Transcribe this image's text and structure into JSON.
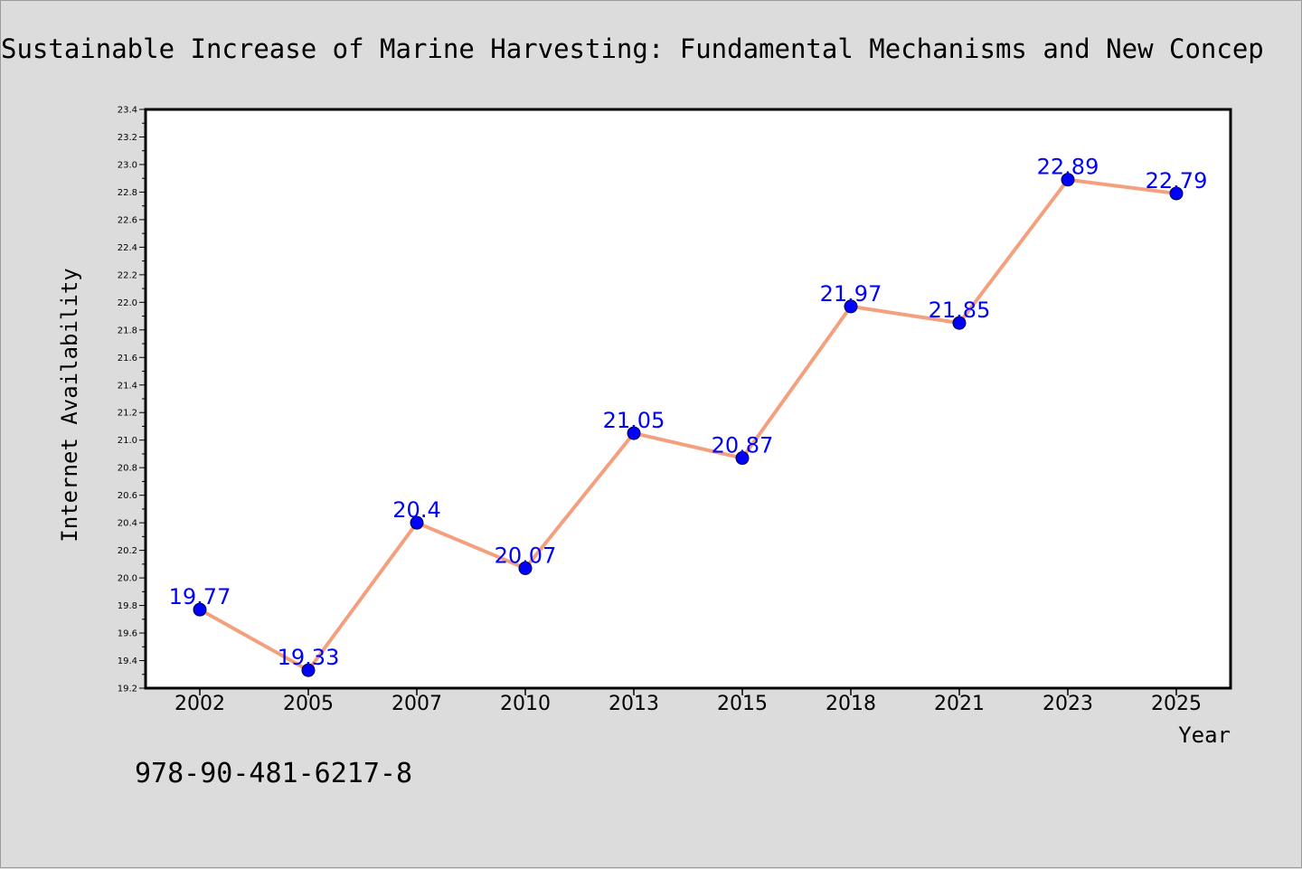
{
  "figure": {
    "isbn": "978-90-481-6217-8"
  },
  "colors": {
    "background": "#dcdcdc",
    "plot_area": "#ffffff",
    "line": "#f4a07e",
    "marker": "#0000ff",
    "data_label": "#0000ff"
  },
  "chart_data": {
    "type": "line",
    "title": "Sustainable Increase of Marine Harvesting: Fundamental Mechanisms and New Concep",
    "xlabel": "Year",
    "ylabel": "Internet Availability",
    "categories": [
      "2002",
      "2005",
      "2007",
      "2010",
      "2013",
      "2015",
      "2018",
      "2021",
      "2023",
      "2025"
    ],
    "series": [
      {
        "values": [
          19.77,
          19.33,
          20.4,
          20.07,
          21.05,
          20.87,
          21.97,
          21.85,
          22.89,
          22.79
        ],
        "labels": [
          "19.77",
          "19.33",
          "20.4",
          "20.07",
          "21.05",
          "20.87",
          "21.97",
          "21.85",
          "22.89",
          "22.79"
        ]
      }
    ],
    "ylim": [
      19.2,
      23.4
    ],
    "yticks": [
      "19.2",
      "19.4",
      "19.6",
      "19.8",
      "20.0",
      "20.2",
      "20.4",
      "20.6",
      "20.8",
      "21.0",
      "21.2",
      "21.4",
      "21.6",
      "21.8",
      "22.0",
      "22.2",
      "22.4",
      "22.6",
      "22.8",
      "23.0",
      "23.2",
      "23.4"
    ],
    "grid": false,
    "legend": "none",
    "markers": true,
    "data_labels": true
  }
}
